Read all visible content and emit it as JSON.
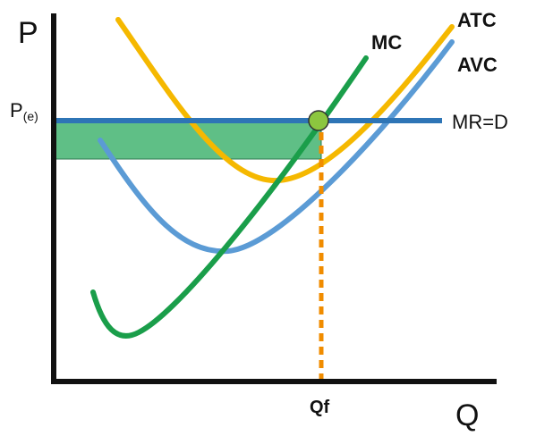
{
  "axes": {
    "y_label": "P",
    "x_label": "Q"
  },
  "price": {
    "label_main": "P",
    "label_sub": "(e)"
  },
  "quantity": {
    "label": "Qf"
  },
  "curves": {
    "mc": "MC",
    "atc": "ATC",
    "avc": "AVC",
    "mr": "MR=D"
  },
  "colors": {
    "mc": "#1a9e4a",
    "atc": "#f5b800",
    "avc": "#5b9bd5",
    "mr": "#2e75b6",
    "profit_area": "#5fbf86",
    "intersection_dot": "#8cc63f",
    "dotted_line": "#f08c00",
    "axis": "#111111"
  }
}
